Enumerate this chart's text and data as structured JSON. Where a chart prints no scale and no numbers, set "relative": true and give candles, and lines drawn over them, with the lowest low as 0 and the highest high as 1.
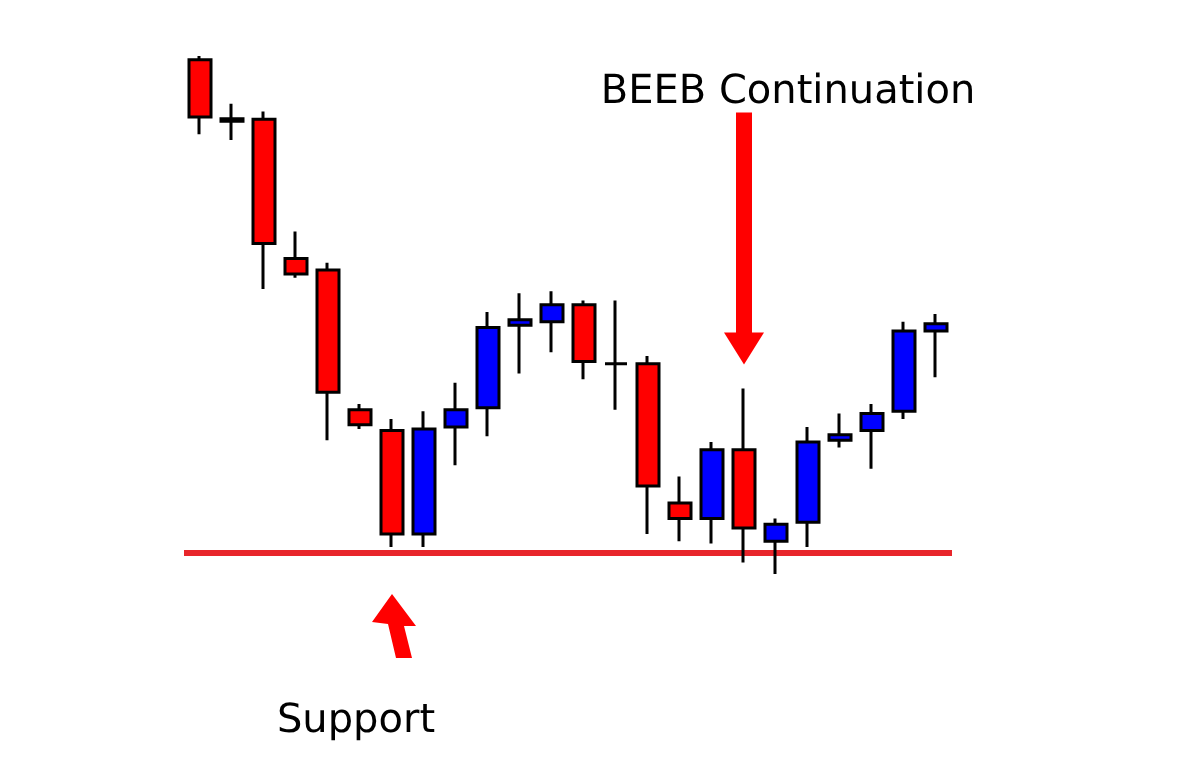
{
  "chart_data": {
    "type": "candlestick",
    "relative": true,
    "categories": [
      null,
      null,
      null,
      null,
      null,
      null,
      null,
      null,
      null,
      null,
      null,
      null,
      null,
      null,
      null,
      null,
      null,
      null,
      null,
      null,
      null,
      null,
      null,
      null
    ],
    "ohlc": [
      [
        0.993,
        1,
        0.849,
        0.882
      ],
      [
        0.879,
        0.908,
        0.838,
        0.874
      ],
      [
        0.878,
        0.893,
        0.55,
        0.638
      ],
      [
        0.609,
        0.661,
        0.572,
        0.579
      ],
      [
        0.587,
        0.601,
        0.258,
        0.351
      ],
      [
        0.317,
        0.328,
        0.28,
        0.288
      ],
      [
        0.277,
        0.299,
        0.052,
        0.077
      ],
      [
        0.077,
        0.314,
        0.052,
        0.28
      ],
      [
        0.284,
        0.369,
        0.21,
        0.317
      ],
      [
        0.321,
        0.506,
        0.266,
        0.476
      ],
      [
        0.48,
        0.542,
        0.387,
        0.491
      ],
      [
        0.487,
        0.546,
        0.428,
        0.52
      ],
      [
        0.52,
        0.528,
        0.376,
        0.41
      ],
      [
        0.406,
        0.528,
        0.317,
        0.406
      ],
      [
        0.406,
        0.421,
        0.077,
        0.17
      ],
      [
        0.137,
        0.188,
        0.063,
        0.107
      ],
      [
        0.107,
        0.255,
        0.059,
        0.24
      ],
      [
        0.24,
        0.358,
        0.022,
        0.089
      ],
      [
        0.063,
        0.107,
        0,
        0.096
      ],
      [
        0.1,
        0.284,
        0.052,
        0.255
      ],
      [
        0.258,
        0.31,
        0.244,
        0.269
      ],
      [
        0.277,
        0.328,
        0.203,
        0.31
      ],
      [
        0.314,
        0.487,
        0.299,
        0.469
      ],
      [
        0.469,
        0.502,
        0.38,
        0.483
      ]
    ],
    "colors": [
      "#ff0000",
      "#000000",
      "#ff0000",
      "#ff0000",
      "#ff0000",
      "#ff0000",
      "#ff0000",
      "#0000ff",
      "#0000ff",
      "#0000ff",
      "#0000ff",
      "#0000ff",
      "#ff0000",
      "#000000",
      "#ff0000",
      "#ff0000",
      "#0000ff",
      "#ff0000",
      "#0000ff",
      "#0000ff",
      "#0000ff",
      "#0000ff",
      "#0000ff",
      "#0000ff"
    ],
    "ref_lines": [
      {
        "axis": "y",
        "value": 0.044,
        "color": "#e8262b"
      }
    ],
    "annotations": [
      "BEEB Continuation",
      "Support"
    ],
    "grid": false
  }
}
